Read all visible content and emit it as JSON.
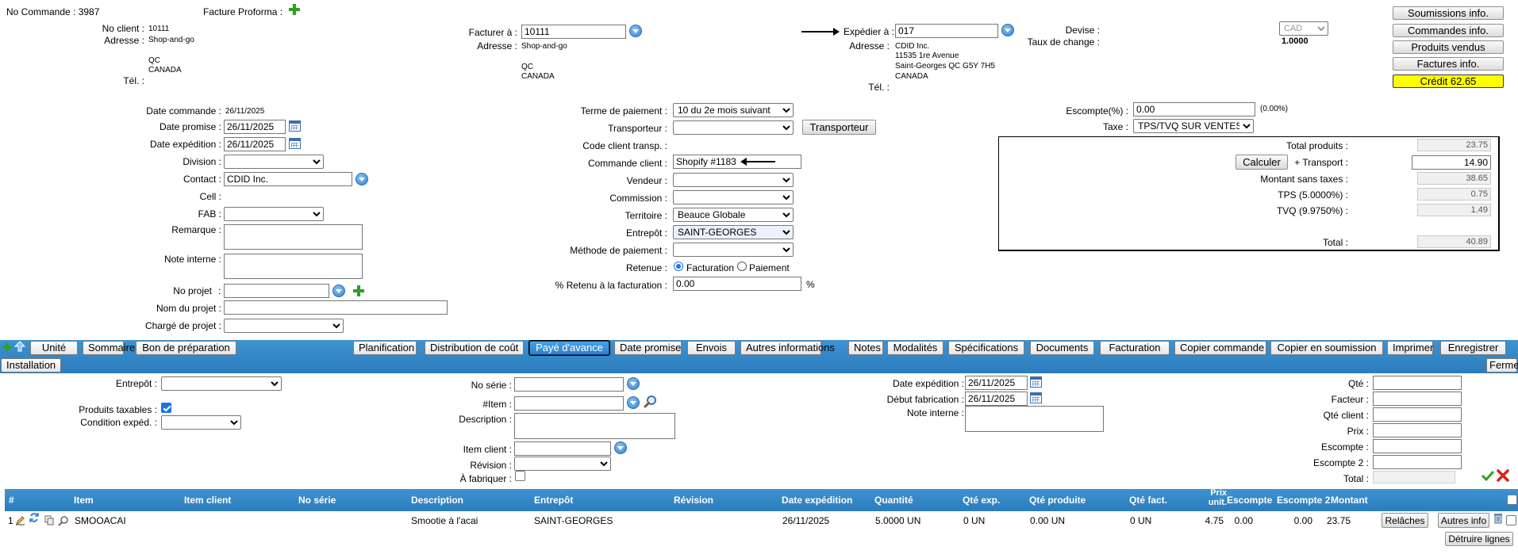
{
  "header": {
    "order_number": "No Commande : 3987",
    "proforma_label": "Facture Proforma :"
  },
  "client": {
    "no_client_label": "No client :",
    "no_client_value": "10111",
    "address_label": "Adresse :",
    "address_lines": [
      "Shop-and-go",
      "",
      "QC",
      "CANADA"
    ],
    "phone_label": "Tél. :"
  },
  "bill_to": {
    "label": "Facturer à :",
    "value": "10111",
    "address_label": "Adresse :",
    "address_lines": [
      "Shop-and-go",
      "",
      "QC",
      "CANADA"
    ]
  },
  "ship_to": {
    "label": "Expédier à :",
    "value": "017",
    "address_label": "Adresse :",
    "address_lines": [
      "CDID Inc.",
      "11535 1re Avenue",
      "Saint-Georges QC G5Y 7H5",
      "CANADA"
    ],
    "phone_label": "Tél. :"
  },
  "currency": {
    "label": "Devise :",
    "value": "CAD",
    "rate_label": "Taux de change :",
    "rate_value": "1.0000"
  },
  "side_buttons": {
    "submissions": "Soumissions info.",
    "orders": "Commandes info.",
    "products": "Produits vendus",
    "invoices": "Factures info.",
    "credit": "Crédit 62.65"
  },
  "form_left": {
    "date_order_label": "Date commande :",
    "date_order_value": "26/11/2025",
    "date_promised_label": "Date promise :",
    "date_promised_value": "26/11/2025",
    "date_shipping_label": "Date expédition :",
    "date_shipping_value": "26/11/2025",
    "division_label": "Division :",
    "contact_label": "Contact :",
    "contact_value": "CDID Inc.",
    "cell_label": "Cell :",
    "fab_label": "FAB :",
    "remark_label": "Remarque :",
    "internal_note_label": "Note interne :",
    "project_no_label": "No projet",
    "project_name_label": "Nom du projet :",
    "project_manager_label": "Chargé de projet :"
  },
  "form_mid": {
    "payment_terms_label": "Terme de paiement :",
    "payment_terms_value": "10 du 2e mois suivant",
    "carrier_label": "Transporteur :",
    "carrier_button": "Transporteur",
    "carrier_code_label": "Code client transp. :",
    "client_order_label": "Commande client :",
    "client_order_value": "Shopify #1183",
    "seller_label": "Vendeur :",
    "commission_label": "Commission :",
    "territory_label": "Territoire :",
    "territory_value": "Beauce Globale",
    "warehouse_label": "Entrepôt :",
    "warehouse_value": "SAINT-GEORGES",
    "payment_method_label": "Méthode de paiement :",
    "holdback_label": "Retenue :",
    "holdback_opt1": "Facturation",
    "holdback_opt2": "Paiement",
    "holdback_pct_label": "% Retenu à la facturation :",
    "holdback_pct_value": "0.00",
    "pct_sign": "%"
  },
  "form_right": {
    "discount_label": "Escompte(%) :",
    "discount_value": "0.00",
    "discount_note": "(0.00%)",
    "tax_label": "Taxe :",
    "tax_value": "TPS/TVQ SUR VENTES"
  },
  "totals": {
    "total_products_label": "Total produits :",
    "total_products_value": "23.75",
    "calc_button": "Calculer",
    "transport_label": "+ Transport :",
    "transport_value": "14.90",
    "subtotal_label": "Montant sans taxes :",
    "subtotal_value": "38.65",
    "tps_label": "TPS (5.0000%) :",
    "tps_value": "0.75",
    "tvq_label": "TVQ (9.9750%) :",
    "tvq_value": "1.49",
    "total_label": "Total :",
    "total_value": "40.89"
  },
  "toolbar": {
    "row1_left": [
      "Unité",
      "Sommaire",
      "Bon de préparation"
    ],
    "row1_right": [
      "Planification",
      "Distribution de coût",
      "Payé d'avance",
      "Date promise",
      "Envois",
      "Autres informations",
      "Notes",
      "Modalités",
      "Spécifications",
      "Documents",
      "Facturation",
      "Copier commande",
      "Copier en soumission",
      "Imprimer",
      "Enregistrer"
    ],
    "active": "Payé d'avance",
    "install": "Installation",
    "close": "Fermer"
  },
  "line_form": {
    "warehouse_label": "Entrepôt :",
    "taxable_label": "Produits taxables :",
    "ship_cond_label": "Condition expéd. :",
    "serial_label": "No série :",
    "item_label": "#Item :",
    "description_label": "Description :",
    "client_item_label": "Item client :",
    "revision_label": "Révision :",
    "to_make_label": "À fabriquer :",
    "ship_date_label": "Date expédition :",
    "ship_date_value": "26/11/2025",
    "fab_start_label": "Début fabrication :",
    "fab_start_value": "26/11/2025",
    "internal_note_label": "Note interne :",
    "qty_label": "Qté :",
    "factor_label": "Facteur :",
    "client_qty_label": "Qté client :",
    "price_label": "Prix :",
    "discount_label": "Escompte :",
    "discount2_label": "Escompte 2 :",
    "total_label": "Total :"
  },
  "table": {
    "headers": [
      "#",
      "Item",
      "Item client",
      "No série",
      "Description",
      "Entrepôt",
      "Révision",
      "Date expédition",
      "Quantité",
      "Qté exp.",
      "Qté produite",
      "Qté fact.",
      "Prix unit.",
      "Escompte",
      "Escompte 2",
      "Montant"
    ],
    "row": {
      "num": "1",
      "item": "SMOOACAI",
      "item_client": "",
      "serial": "",
      "description": "Smootie à l'acai",
      "warehouse": "SAINT-GEORGES",
      "revision": "",
      "ship_date": "26/11/2025",
      "quantity": "5.0000 UN",
      "qty_shipped": "0 UN",
      "qty_produced": "0.00 UN",
      "qty_invoiced": "0 UN",
      "unit_price": "4.75",
      "discount": "0.00",
      "discount2": "0.00",
      "amount": "23.75",
      "btn_release": "Relâches",
      "btn_other": "Autres info"
    },
    "delete_lines": "Détruire lignes"
  },
  "colors": {
    "toolbar_blue": "#2f86c9",
    "credit_yellow": "#ffff00",
    "accent_green": "#2fa025",
    "cancel_red": "#d9221c"
  }
}
